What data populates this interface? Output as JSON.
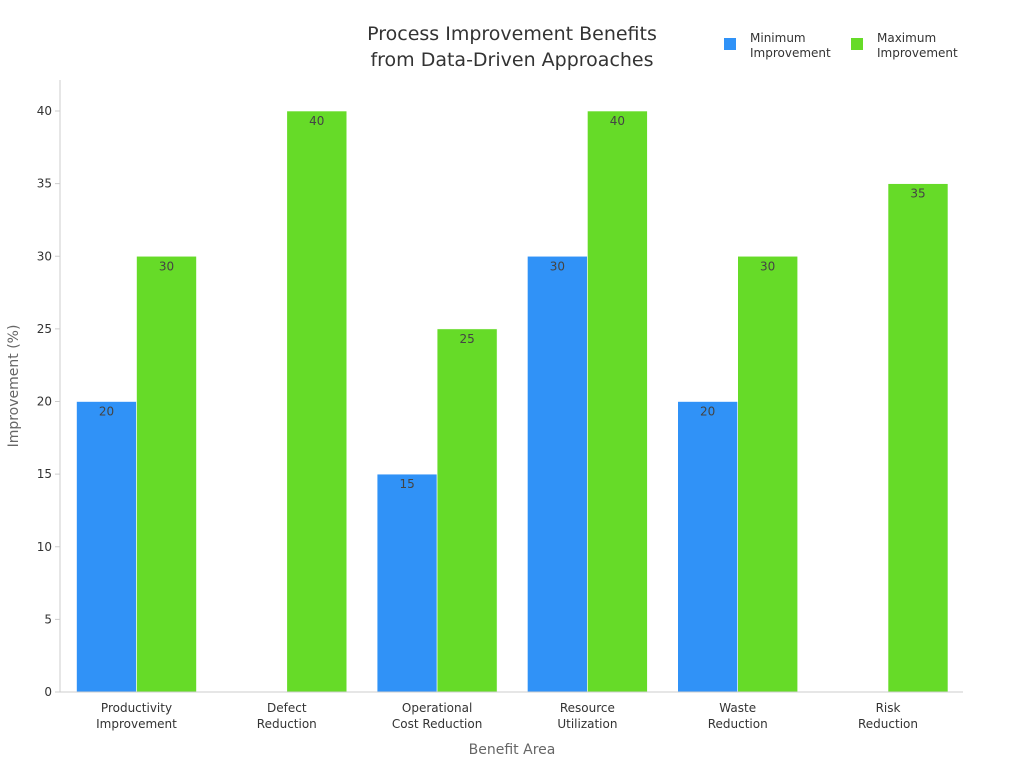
{
  "chart_data": {
    "type": "bar",
    "title_lines": [
      "Process Improvement Benefits",
      "from Data-Driven Approaches"
    ],
    "xlabel": "Benefit Area",
    "ylabel": "Improvement (%)",
    "ylim": [
      0,
      42
    ],
    "yticks": [
      "0",
      "5",
      "10",
      "15",
      "20",
      "25",
      "30",
      "35",
      "40"
    ],
    "categories": [
      [
        "Productivity",
        "Improvement"
      ],
      [
        "Defect",
        "Reduction"
      ],
      [
        "Operational",
        "Cost Reduction"
      ],
      [
        "Resource",
        "Utilization"
      ],
      [
        "Waste",
        "Reduction"
      ],
      [
        "Risk",
        "Reduction"
      ]
    ],
    "series": [
      {
        "name": [
          "Minimum",
          "Improvement"
        ],
        "color": "#3092f7",
        "values": [
          20,
          null,
          15,
          30,
          20,
          null
        ]
      },
      {
        "name": [
          "Maximum",
          "Improvement"
        ],
        "color": "#66db28",
        "values": [
          30,
          40,
          25,
          40,
          30,
          35
        ]
      }
    ],
    "legend_position": "top-right"
  }
}
